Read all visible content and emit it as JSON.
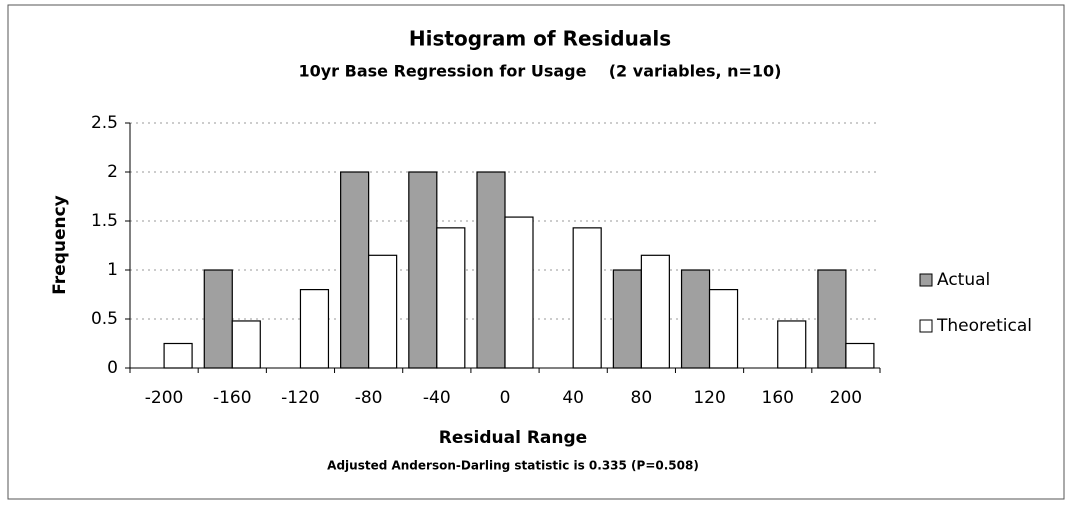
{
  "chart_data": {
    "type": "bar",
    "title": "Histogram of Residuals",
    "subtitle": "10yr Base Regression for Usage    (2 variables, n=10)",
    "x_label": "Residual Range",
    "y_label": "Frequency",
    "annotation": "Adjusted Anderson-Darling statistic is 0.335 (P=0.508)",
    "categories": [
      "-200",
      "-160",
      "-120",
      "-80",
      "-40",
      "0",
      "40",
      "80",
      "120",
      "160",
      "200"
    ],
    "series": [
      {
        "name": "Actual",
        "color": "#a0a0a0",
        "values": [
          0,
          1,
          0,
          2,
          2,
          2,
          0,
          1,
          1,
          0,
          1
        ]
      },
      {
        "name": "Theoretical",
        "color": "#ffffff",
        "values": [
          0.25,
          0.48,
          0.8,
          1.15,
          1.43,
          1.54,
          1.43,
          1.15,
          0.8,
          0.48,
          0.25
        ]
      }
    ],
    "ylim": [
      0,
      2.5
    ],
    "yticks": [
      0,
      0.5,
      1,
      1.5,
      2,
      2.5
    ],
    "grid": true,
    "legend": "right"
  }
}
